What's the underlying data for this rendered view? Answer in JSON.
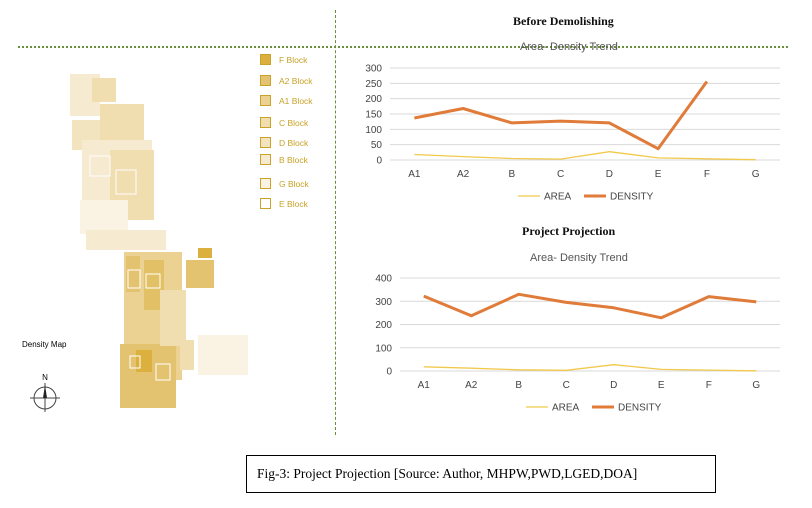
{
  "header": {
    "before_title": "Before Demolishing",
    "projection_title": "Project Projection"
  },
  "map": {
    "label": "Density Map",
    "compass_letter": "N",
    "legend": [
      {
        "label": "F Block",
        "color": "#dbb03f"
      },
      {
        "label": "A2 Block",
        "color": "#e4c370"
      },
      {
        "label": "A1 Block",
        "color": "#ebd293"
      },
      {
        "label": "C Block",
        "color": "#f0ddb0"
      },
      {
        "label": "D Block",
        "color": "#f3e4c0"
      },
      {
        "label": "B Block",
        "color": "#f6ead0"
      },
      {
        "label": "G Block",
        "color": "#faf2e2"
      },
      {
        "label": "E Block",
        "color": "#ffffff"
      }
    ]
  },
  "chart_data": [
    {
      "type": "line",
      "title": "Area- Density Trend",
      "categories": [
        "A1",
        "A2",
        "B",
        "C",
        "D",
        "E",
        "F",
        "G"
      ],
      "ylim": [
        0,
        300
      ],
      "yticks": [
        0,
        50,
        100,
        150,
        200,
        250,
        300
      ],
      "grid": true,
      "legend_position": "bottom",
      "series": [
        {
          "name": "AREA",
          "color": "#f2c94c",
          "values": [
            18,
            11,
            5,
            3,
            27,
            7,
            4,
            1
          ]
        },
        {
          "name": "DENSITY",
          "color": "#e07b39",
          "values": [
            137,
            168,
            121,
            127,
            121,
            37,
            256,
            null
          ]
        }
      ]
    },
    {
      "type": "line",
      "title": "Area- Density Trend",
      "categories": [
        "A1",
        "A2",
        "B",
        "C",
        "D",
        "E",
        "F",
        "G"
      ],
      "ylim": [
        0,
        400
      ],
      "yticks": [
        0,
        100,
        200,
        300,
        400
      ],
      "grid": true,
      "legend_position": "bottom",
      "series": [
        {
          "name": "AREA",
          "color": "#f2c94c",
          "values": [
            18,
            12,
            5,
            3,
            27,
            7,
            4,
            1
          ]
        },
        {
          "name": "DENSITY",
          "color": "#e07b39",
          "values": [
            322,
            238,
            330,
            295,
            272,
            229,
            320,
            297
          ]
        }
      ]
    }
  ],
  "caption": "Fig-3: Project Projection [Source: Author, MHPW,PWD,LGED,DOA]"
}
